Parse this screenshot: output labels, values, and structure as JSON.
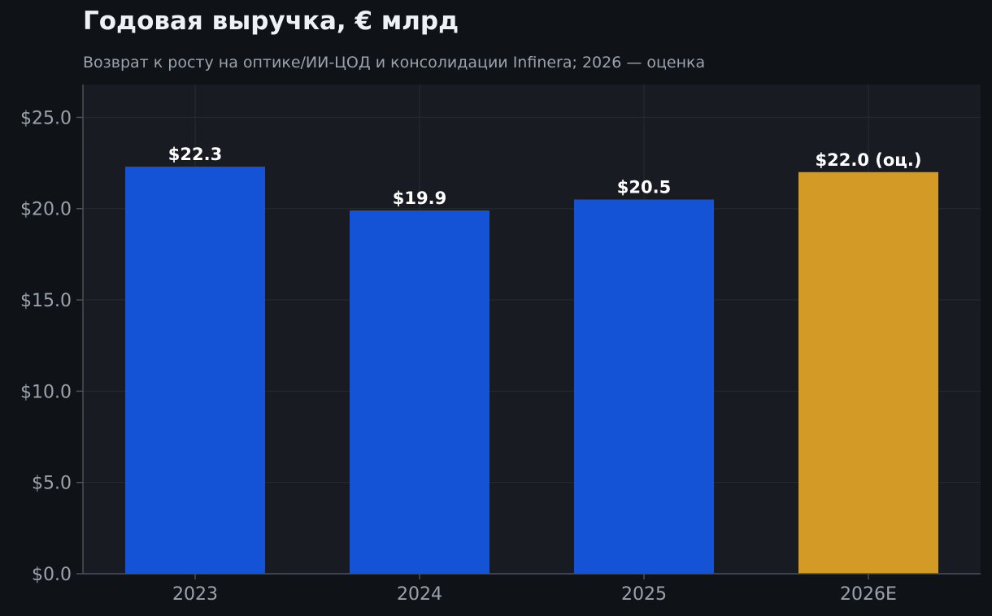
{
  "header": {
    "title": "Годовая выручка, € млрд",
    "subtitle": "Возврат к росту на оптике/ИИ-ЦОД и консолидации Infinera; 2026 — оценка"
  },
  "colors": {
    "page_background": "#0f1317",
    "plot_background": "#181c22",
    "grid": "#262b33",
    "axis": "#4a515b",
    "actual_bar": "#1553d6",
    "estimate_bar": "#d39a25",
    "tick_text": "#9aa3ad",
    "label_text": "#ffffff"
  },
  "chart_data": {
    "type": "bar",
    "title": "Годовая выручка, € млрд",
    "subtitle": "Возврат к росту на оптике/ИИ-ЦОД и консолидации Infinera; 2026 — оценка",
    "xlabel": "",
    "ylabel": "",
    "categories": [
      "2023",
      "2024",
      "2025",
      "2026E"
    ],
    "values": [
      22.3,
      19.9,
      20.5,
      22.0
    ],
    "value_labels": [
      "$22.3",
      "$19.9",
      "$20.5",
      "$22.0 (оц.)"
    ],
    "estimate": [
      false,
      false,
      false,
      true
    ],
    "ylim": [
      0,
      26.8
    ],
    "yticks": [
      0,
      5,
      10,
      15,
      20,
      25
    ],
    "ytick_labels": [
      "$0.0",
      "$5.0",
      "$10.0",
      "$15.0",
      "$20.0",
      "$25.0"
    ],
    "grid": true,
    "legend": "none"
  }
}
